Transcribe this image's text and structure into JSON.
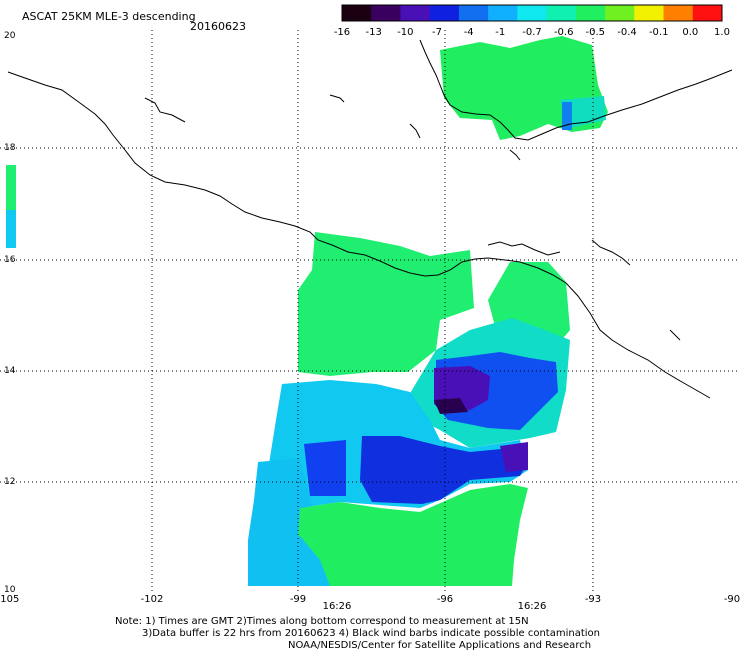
{
  "header": {
    "title": "ASCAT 25KM MLE-3 descending",
    "date": "20160623"
  },
  "colorbar": {
    "labels": [
      "-16",
      "-13",
      "-10",
      "-7",
      "-4",
      "-1",
      "-0.7",
      "-0.6",
      "-0.5",
      "-0.4",
      "-0.1",
      "0.0",
      "1.0"
    ],
    "colors": [
      "#1a0010",
      "#3a0060",
      "#4a10b8",
      "#1020e0",
      "#1070f0",
      "#10b0ff",
      "#10e8f0",
      "#10f0b0",
      "#20f060",
      "#70f020",
      "#f0f000",
      "#ff8000",
      "#ff1010"
    ]
  },
  "map": {
    "lat_labels": [
      "20",
      "18",
      "16",
      "14",
      "12",
      "10"
    ],
    "lon_labels": [
      "-105",
      "-102",
      "-99",
      "-96",
      "-93",
      "-90"
    ],
    "time_labels": [
      "16:26",
      "16:26"
    ],
    "time_color": "#d02000",
    "land_color": "#000000"
  },
  "footer": {
    "line1": "Note: 1) Times are GMT 2)Times along bottom correspond to measurement at 15N",
    "line2": "3)Data buffer is 22 hrs from 20160623 4) Black wind barbs indicate possible contamination",
    "line3": "NOAA/NESDIS/Center for Satellite Applications and Research"
  }
}
